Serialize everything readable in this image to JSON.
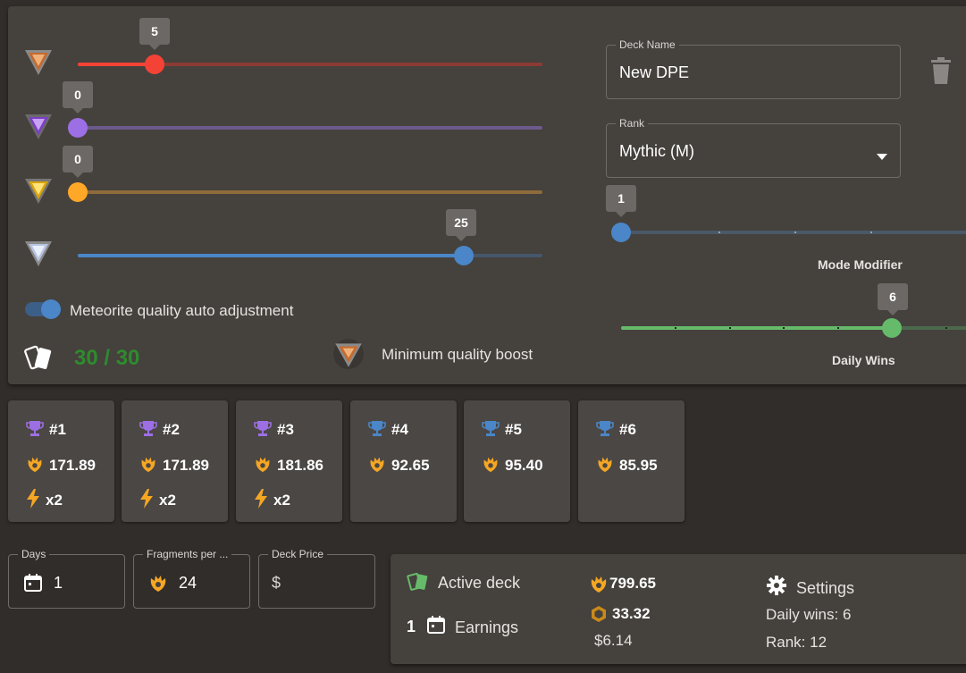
{
  "sliders": [
    {
      "gem": "bronze-gem-icon",
      "value": "5",
      "color": "#f44336",
      "fraction": 0.164
    },
    {
      "gem": "purple-gem-icon",
      "value": "0",
      "color": "#9c6fe4",
      "fraction": 0.0
    },
    {
      "gem": "gold-gem-icon",
      "value": "0",
      "color": "#ffa726",
      "fraction": 0.0
    },
    {
      "gem": "silver-gem-icon",
      "value": "25",
      "color": "#4a86c8",
      "fraction": 0.827
    }
  ],
  "toggle": {
    "label": "Meteorite quality auto adjustment",
    "on": true
  },
  "card_count": {
    "text": "30 / 30",
    "color": "#2e8b2e"
  },
  "min_quality": {
    "label": "Minimum quality boost"
  },
  "deck_name": {
    "label": "Deck Name",
    "value": "New DPE"
  },
  "rank": {
    "label": "Rank",
    "value": "Mythic (M)"
  },
  "mode_modifier": {
    "value": "1",
    "label": "Mode Modifier"
  },
  "daily_wins": {
    "value": "6",
    "label": "Daily Wins"
  },
  "cards": [
    {
      "rank": "#1",
      "trophy_color": "#9c6fe4",
      "fragments": "171.89",
      "mult": "x2"
    },
    {
      "rank": "#2",
      "trophy_color": "#9c6fe4",
      "fragments": "171.89",
      "mult": "x2"
    },
    {
      "rank": "#3",
      "trophy_color": "#9c6fe4",
      "fragments": "181.86",
      "mult": "x2"
    },
    {
      "rank": "#4",
      "trophy_color": "#4a86c8",
      "fragments": "92.65",
      "mult": ""
    },
    {
      "rank": "#5",
      "trophy_color": "#4a86c8",
      "fragments": "95.40",
      "mult": ""
    },
    {
      "rank": "#6",
      "trophy_color": "#4a86c8",
      "fragments": "85.95",
      "mult": ""
    }
  ],
  "days": {
    "label": "Days",
    "value": "1"
  },
  "fragments_per": {
    "label": "Fragments per ...",
    "value": "24"
  },
  "deck_price": {
    "label": "Deck Price",
    "value": "$"
  },
  "summary": {
    "active_deck": "Active deck",
    "earnings_count": "1",
    "earnings": "Earnings",
    "fragments": "799.65",
    "coins": "33.32",
    "dollars": "$6.14",
    "settings": "Settings",
    "daily_wins": "Daily wins: 6",
    "rank": "Rank: 12"
  },
  "colors": {
    "accent_orange": "#f5a623",
    "green": "#66bb6a",
    "blue": "#4a86c8"
  }
}
